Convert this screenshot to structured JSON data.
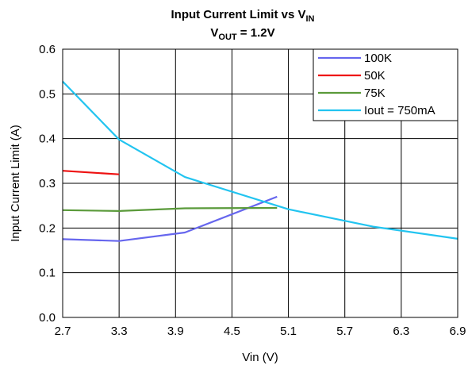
{
  "chart_data": {
    "type": "line",
    "title": {
      "line1_main": "Input Current Limit vs V",
      "line1_sub": "IN",
      "line2_main": "V",
      "line2_sub": "OUT",
      "line2_rest": " = 1.2V"
    },
    "xlabel": "Vin (V)",
    "ylabel": "Input Current Limit (A)",
    "xlim": [
      2.7,
      6.9
    ],
    "ylim": [
      0,
      0.6
    ],
    "xticks": [
      "2.7",
      "3.3",
      "3.9",
      "4.5",
      "5.1",
      "5.7",
      "6.3",
      "6.9"
    ],
    "yticks": [
      "0.0",
      "0.1",
      "0.2",
      "0.3",
      "0.4",
      "0.5",
      "0.6"
    ],
    "grid": true,
    "legend_position": "top-right",
    "series": [
      {
        "name": "100K",
        "color": "#6666ee",
        "x": [
          2.7,
          3.3,
          4.0,
          4.98
        ],
        "y": [
          0.175,
          0.171,
          0.19,
          0.27
        ]
      },
      {
        "name": "50K",
        "color": "#ee1111",
        "x": [
          2.7,
          3.3
        ],
        "y": [
          0.328,
          0.32
        ]
      },
      {
        "name": "75K",
        "color": "#5a9a3a",
        "x": [
          2.7,
          3.3,
          4.0,
          4.98
        ],
        "y": [
          0.24,
          0.238,
          0.244,
          0.245
        ]
      },
      {
        "name": "Iout = 750mA",
        "color": "#22c4f0",
        "x": [
          2.7,
          3.3,
          4.0,
          5.1,
          6.0,
          6.9
        ],
        "y": [
          0.528,
          0.398,
          0.314,
          0.242,
          0.203,
          0.176
        ]
      }
    ]
  }
}
